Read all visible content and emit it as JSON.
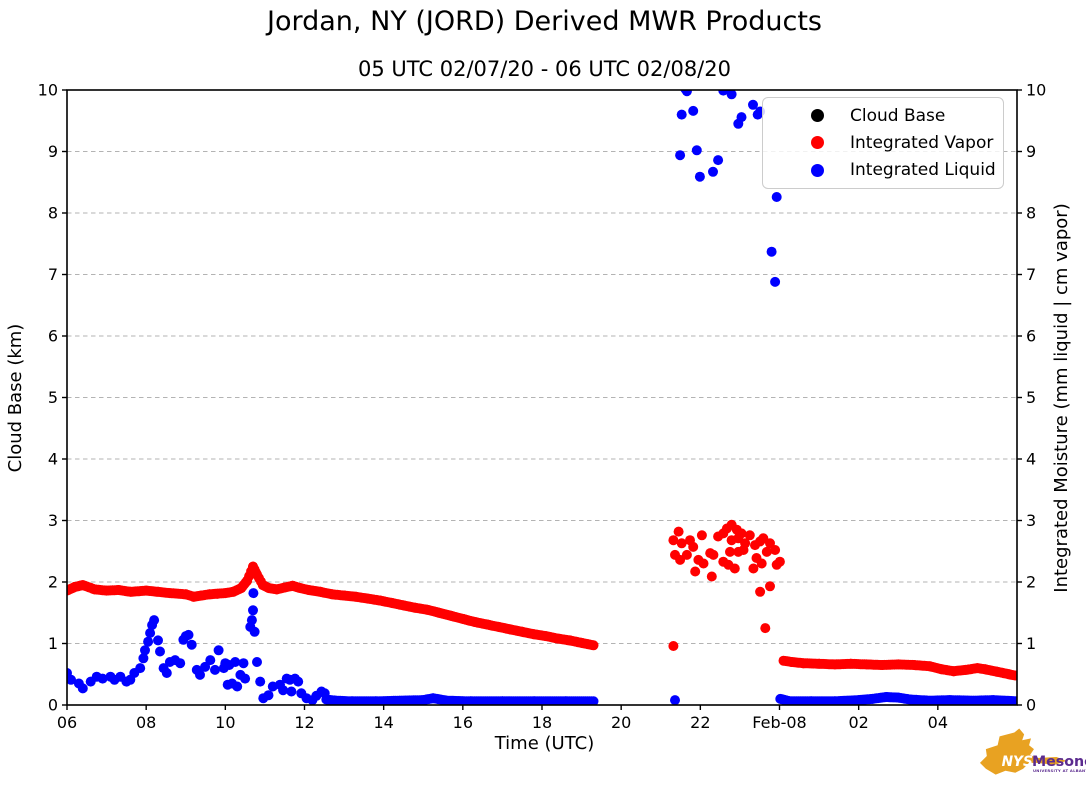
{
  "header": {
    "title": "Jordan, NY (JORD) Derived MWR Products",
    "subtitle": "05 UTC 02/07/20 - 06 UTC 02/08/20"
  },
  "logo": {
    "org_short": "NYS",
    "org_name": "Mesonet",
    "org_sub": "UNIVERSITY AT ALBANY",
    "orange": "#E8A222",
    "purple": "#5B2B8F"
  },
  "chart_data": {
    "type": "scatter",
    "title": "Jordan, NY (JORD) Derived MWR Products",
    "subtitle": "05 UTC 02/07/20 - 06 UTC 02/08/20",
    "xlabel": "Time (UTC)",
    "ylabel_left": "Cloud Base (km)",
    "ylabel_right": "Integrated Moisture (mm liquid | cm vapor)",
    "x_range_hours": [
      6,
      30
    ],
    "ylim": [
      0,
      10
    ],
    "grid": "horizontal-dashed",
    "grid_color": "#b3b3b3",
    "legend_position": "upper right",
    "x_ticks": [
      {
        "t": 6,
        "label": "06"
      },
      {
        "t": 8,
        "label": "08"
      },
      {
        "t": 10,
        "label": "10"
      },
      {
        "t": 12,
        "label": "12"
      },
      {
        "t": 14,
        "label": "14"
      },
      {
        "t": 16,
        "label": "16"
      },
      {
        "t": 18,
        "label": "18"
      },
      {
        "t": 20,
        "label": "20"
      },
      {
        "t": 22,
        "label": "22"
      },
      {
        "t": 24,
        "label": "Feb-08"
      },
      {
        "t": 26,
        "label": "02"
      },
      {
        "t": 28,
        "label": "04"
      }
    ],
    "y_ticks": [
      0,
      1,
      2,
      3,
      4,
      5,
      6,
      7,
      8,
      9,
      10
    ],
    "series": [
      {
        "name": "Cloud Base",
        "color": "#000000",
        "points": [],
        "segments": []
      },
      {
        "name": "Integrated Vapor",
        "color": "#ff0000",
        "segments": [
          [
            [
              6.0,
              1.86
            ],
            [
              6.2,
              1.92
            ],
            [
              6.4,
              1.95
            ],
            [
              6.7,
              1.88
            ],
            [
              7.0,
              1.86
            ],
            [
              7.3,
              1.87
            ],
            [
              7.6,
              1.84
            ],
            [
              8.0,
              1.86
            ],
            [
              8.3,
              1.84
            ],
            [
              8.6,
              1.82
            ],
            [
              9.0,
              1.8
            ],
            [
              9.2,
              1.76
            ],
            [
              9.4,
              1.78
            ],
            [
              9.6,
              1.8
            ],
            [
              9.8,
              1.81
            ],
            [
              10.0,
              1.82
            ],
            [
              10.2,
              1.84
            ],
            [
              10.4,
              1.9
            ],
            [
              10.55,
              2.02
            ],
            [
              10.7,
              2.25
            ],
            [
              10.8,
              2.12
            ],
            [
              10.95,
              1.95
            ],
            [
              11.1,
              1.9
            ],
            [
              11.3,
              1.88
            ],
            [
              11.5,
              1.91
            ],
            [
              11.7,
              1.94
            ],
            [
              11.9,
              1.9
            ],
            [
              12.1,
              1.87
            ],
            [
              12.4,
              1.84
            ],
            [
              12.7,
              1.8
            ],
            [
              13.0,
              1.78
            ],
            [
              13.3,
              1.76
            ],
            [
              13.6,
              1.73
            ],
            [
              13.9,
              1.7
            ],
            [
              14.2,
              1.66
            ],
            [
              14.5,
              1.62
            ],
            [
              14.8,
              1.58
            ],
            [
              15.1,
              1.55
            ],
            [
              15.4,
              1.5
            ],
            [
              15.7,
              1.45
            ],
            [
              16.0,
              1.4
            ],
            [
              16.3,
              1.35
            ],
            [
              16.6,
              1.31
            ],
            [
              16.9,
              1.27
            ],
            [
              17.2,
              1.23
            ],
            [
              17.5,
              1.19
            ],
            [
              17.8,
              1.15
            ],
            [
              18.1,
              1.12
            ],
            [
              18.4,
              1.08
            ],
            [
              18.7,
              1.05
            ],
            [
              19.0,
              1.01
            ],
            [
              19.3,
              0.97
            ]
          ],
          [
            [
              24.1,
              0.72
            ],
            [
              24.3,
              0.7
            ],
            [
              24.6,
              0.68
            ],
            [
              25.0,
              0.67
            ],
            [
              25.4,
              0.66
            ],
            [
              25.8,
              0.67
            ],
            [
              26.2,
              0.66
            ],
            [
              26.6,
              0.65
            ],
            [
              27.0,
              0.66
            ],
            [
              27.4,
              0.65
            ],
            [
              27.8,
              0.63
            ],
            [
              28.1,
              0.58
            ],
            [
              28.4,
              0.55
            ],
            [
              28.7,
              0.57
            ],
            [
              29.0,
              0.6
            ],
            [
              29.2,
              0.58
            ],
            [
              29.5,
              0.54
            ],
            [
              29.8,
              0.5
            ],
            [
              29.95,
              0.48
            ]
          ]
        ],
        "points": [
          [
            21.32,
            0.96
          ],
          [
            21.32,
            2.68
          ],
          [
            21.36,
            2.44
          ],
          [
            21.45,
            2.82
          ],
          [
            21.49,
            2.36
          ],
          [
            21.53,
            2.63
          ],
          [
            21.66,
            2.44
          ],
          [
            21.74,
            2.68
          ],
          [
            21.82,
            2.57
          ],
          [
            21.87,
            2.17
          ],
          [
            21.95,
            2.36
          ],
          [
            22.04,
            2.76
          ],
          [
            22.08,
            2.3
          ],
          [
            22.25,
            2.47
          ],
          [
            22.29,
            2.09
          ],
          [
            22.33,
            2.44
          ],
          [
            22.45,
            2.74
          ],
          [
            22.58,
            2.79
          ],
          [
            22.58,
            2.33
          ],
          [
            22.67,
            2.87
          ],
          [
            22.71,
            2.28
          ],
          [
            22.75,
            2.49
          ],
          [
            22.79,
            2.93
          ],
          [
            22.79,
            2.68
          ],
          [
            22.87,
            2.22
          ],
          [
            22.92,
            2.85
          ],
          [
            22.96,
            2.71
          ],
          [
            22.96,
            2.49
          ],
          [
            23.04,
            2.79
          ],
          [
            23.09,
            2.52
          ],
          [
            23.13,
            2.63
          ],
          [
            23.25,
            2.76
          ],
          [
            23.34,
            2.22
          ],
          [
            23.38,
            2.6
          ],
          [
            23.42,
            2.39
          ],
          [
            23.51,
            2.66
          ],
          [
            23.51,
            1.84
          ],
          [
            23.55,
            2.3
          ],
          [
            23.59,
            2.71
          ],
          [
            23.64,
            1.25
          ],
          [
            23.68,
            2.49
          ],
          [
            23.76,
            2.63
          ],
          [
            23.76,
            1.93
          ],
          [
            23.89,
            2.52
          ],
          [
            23.93,
            2.28
          ],
          [
            24.01,
            2.33
          ]
        ]
      },
      {
        "name": "Integrated Liquid",
        "color": "#0000ff",
        "segments": [
          [
            [
              12.55,
              0.09
            ],
            [
              12.8,
              0.07
            ],
            [
              13.2,
              0.06
            ],
            [
              13.8,
              0.06
            ],
            [
              14.4,
              0.07
            ],
            [
              15.0,
              0.08
            ],
            [
              15.25,
              0.11
            ],
            [
              15.6,
              0.07
            ],
            [
              16.2,
              0.06
            ],
            [
              17.0,
              0.06
            ],
            [
              17.8,
              0.06
            ],
            [
              18.6,
              0.06
            ],
            [
              19.3,
              0.06
            ]
          ],
          [
            [
              24.02,
              0.1
            ],
            [
              24.25,
              0.06
            ],
            [
              24.8,
              0.06
            ],
            [
              25.4,
              0.06
            ],
            [
              26.0,
              0.08
            ],
            [
              26.35,
              0.1
            ],
            [
              26.7,
              0.13
            ],
            [
              27.0,
              0.12
            ],
            [
              27.3,
              0.09
            ],
            [
              27.8,
              0.07
            ],
            [
              28.3,
              0.08
            ],
            [
              28.9,
              0.07
            ],
            [
              29.4,
              0.08
            ],
            [
              30.0,
              0.06
            ]
          ]
        ],
        "points": [
          [
            6.0,
            0.52
          ],
          [
            6.1,
            0.41
          ],
          [
            6.3,
            0.35
          ],
          [
            6.4,
            0.27
          ],
          [
            6.6,
            0.38
          ],
          [
            6.75,
            0.46
          ],
          [
            6.9,
            0.43
          ],
          [
            7.1,
            0.46
          ],
          [
            7.2,
            0.41
          ],
          [
            7.35,
            0.46
          ],
          [
            7.5,
            0.38
          ],
          [
            7.6,
            0.41
          ],
          [
            7.7,
            0.52
          ],
          [
            7.85,
            0.6
          ],
          [
            7.93,
            0.76
          ],
          [
            7.97,
            0.89
          ],
          [
            8.05,
            1.03
          ],
          [
            8.1,
            1.17
          ],
          [
            8.15,
            1.3
          ],
          [
            8.2,
            1.38
          ],
          [
            8.3,
            1.05
          ],
          [
            8.35,
            0.87
          ],
          [
            8.44,
            0.6
          ],
          [
            8.52,
            0.52
          ],
          [
            8.6,
            0.7
          ],
          [
            8.73,
            0.73
          ],
          [
            8.86,
            0.68
          ],
          [
            8.94,
            1.06
          ],
          [
            9.0,
            1.12
          ],
          [
            9.07,
            1.14
          ],
          [
            9.15,
            0.98
          ],
          [
            9.28,
            0.57
          ],
          [
            9.36,
            0.49
          ],
          [
            9.49,
            0.62
          ],
          [
            9.62,
            0.73
          ],
          [
            9.74,
            0.57
          ],
          [
            9.83,
            0.89
          ],
          [
            9.96,
            0.6
          ],
          [
            10.0,
            0.68
          ],
          [
            10.06,
            0.33
          ],
          [
            10.1,
            0.65
          ],
          [
            10.17,
            0.35
          ],
          [
            10.25,
            0.7
          ],
          [
            10.3,
            0.3
          ],
          [
            10.38,
            0.49
          ],
          [
            10.46,
            0.68
          ],
          [
            10.5,
            0.43
          ],
          [
            10.63,
            1.27
          ],
          [
            10.67,
            1.38
          ],
          [
            10.7,
            1.54
          ],
          [
            10.71,
            1.82
          ],
          [
            10.74,
            1.19
          ],
          [
            10.8,
            0.7
          ],
          [
            10.88,
            0.38
          ],
          [
            10.96,
            0.11
          ],
          [
            11.09,
            0.16
          ],
          [
            11.2,
            0.3
          ],
          [
            11.38,
            0.33
          ],
          [
            11.46,
            0.24
          ],
          [
            11.55,
            0.43
          ],
          [
            11.63,
            0.41
          ],
          [
            11.67,
            0.22
          ],
          [
            11.76,
            0.43
          ],
          [
            11.84,
            0.38
          ],
          [
            11.92,
            0.19
          ],
          [
            12.05,
            0.11
          ],
          [
            12.2,
            0.08
          ],
          [
            12.3,
            0.15
          ],
          [
            12.43,
            0.22
          ],
          [
            12.51,
            0.19
          ],
          [
            21.36,
            0.08
          ],
          [
            21.49,
            8.94
          ],
          [
            21.53,
            9.6
          ],
          [
            21.62,
            10.02
          ],
          [
            21.66,
            9.98
          ],
          [
            21.82,
            9.66
          ],
          [
            21.91,
            9.02
          ],
          [
            21.99,
            8.59
          ],
          [
            22.32,
            8.67
          ],
          [
            22.45,
            8.86
          ],
          [
            22.58,
            9.99
          ],
          [
            22.67,
            10.02
          ],
          [
            22.79,
            9.93
          ],
          [
            22.96,
            9.45
          ],
          [
            23.04,
            9.56
          ],
          [
            23.33,
            9.76
          ],
          [
            23.45,
            9.6
          ],
          [
            23.51,
            9.65
          ],
          [
            23.8,
            7.37
          ],
          [
            23.89,
            6.88
          ],
          [
            23.93,
            8.26
          ]
        ]
      }
    ]
  }
}
